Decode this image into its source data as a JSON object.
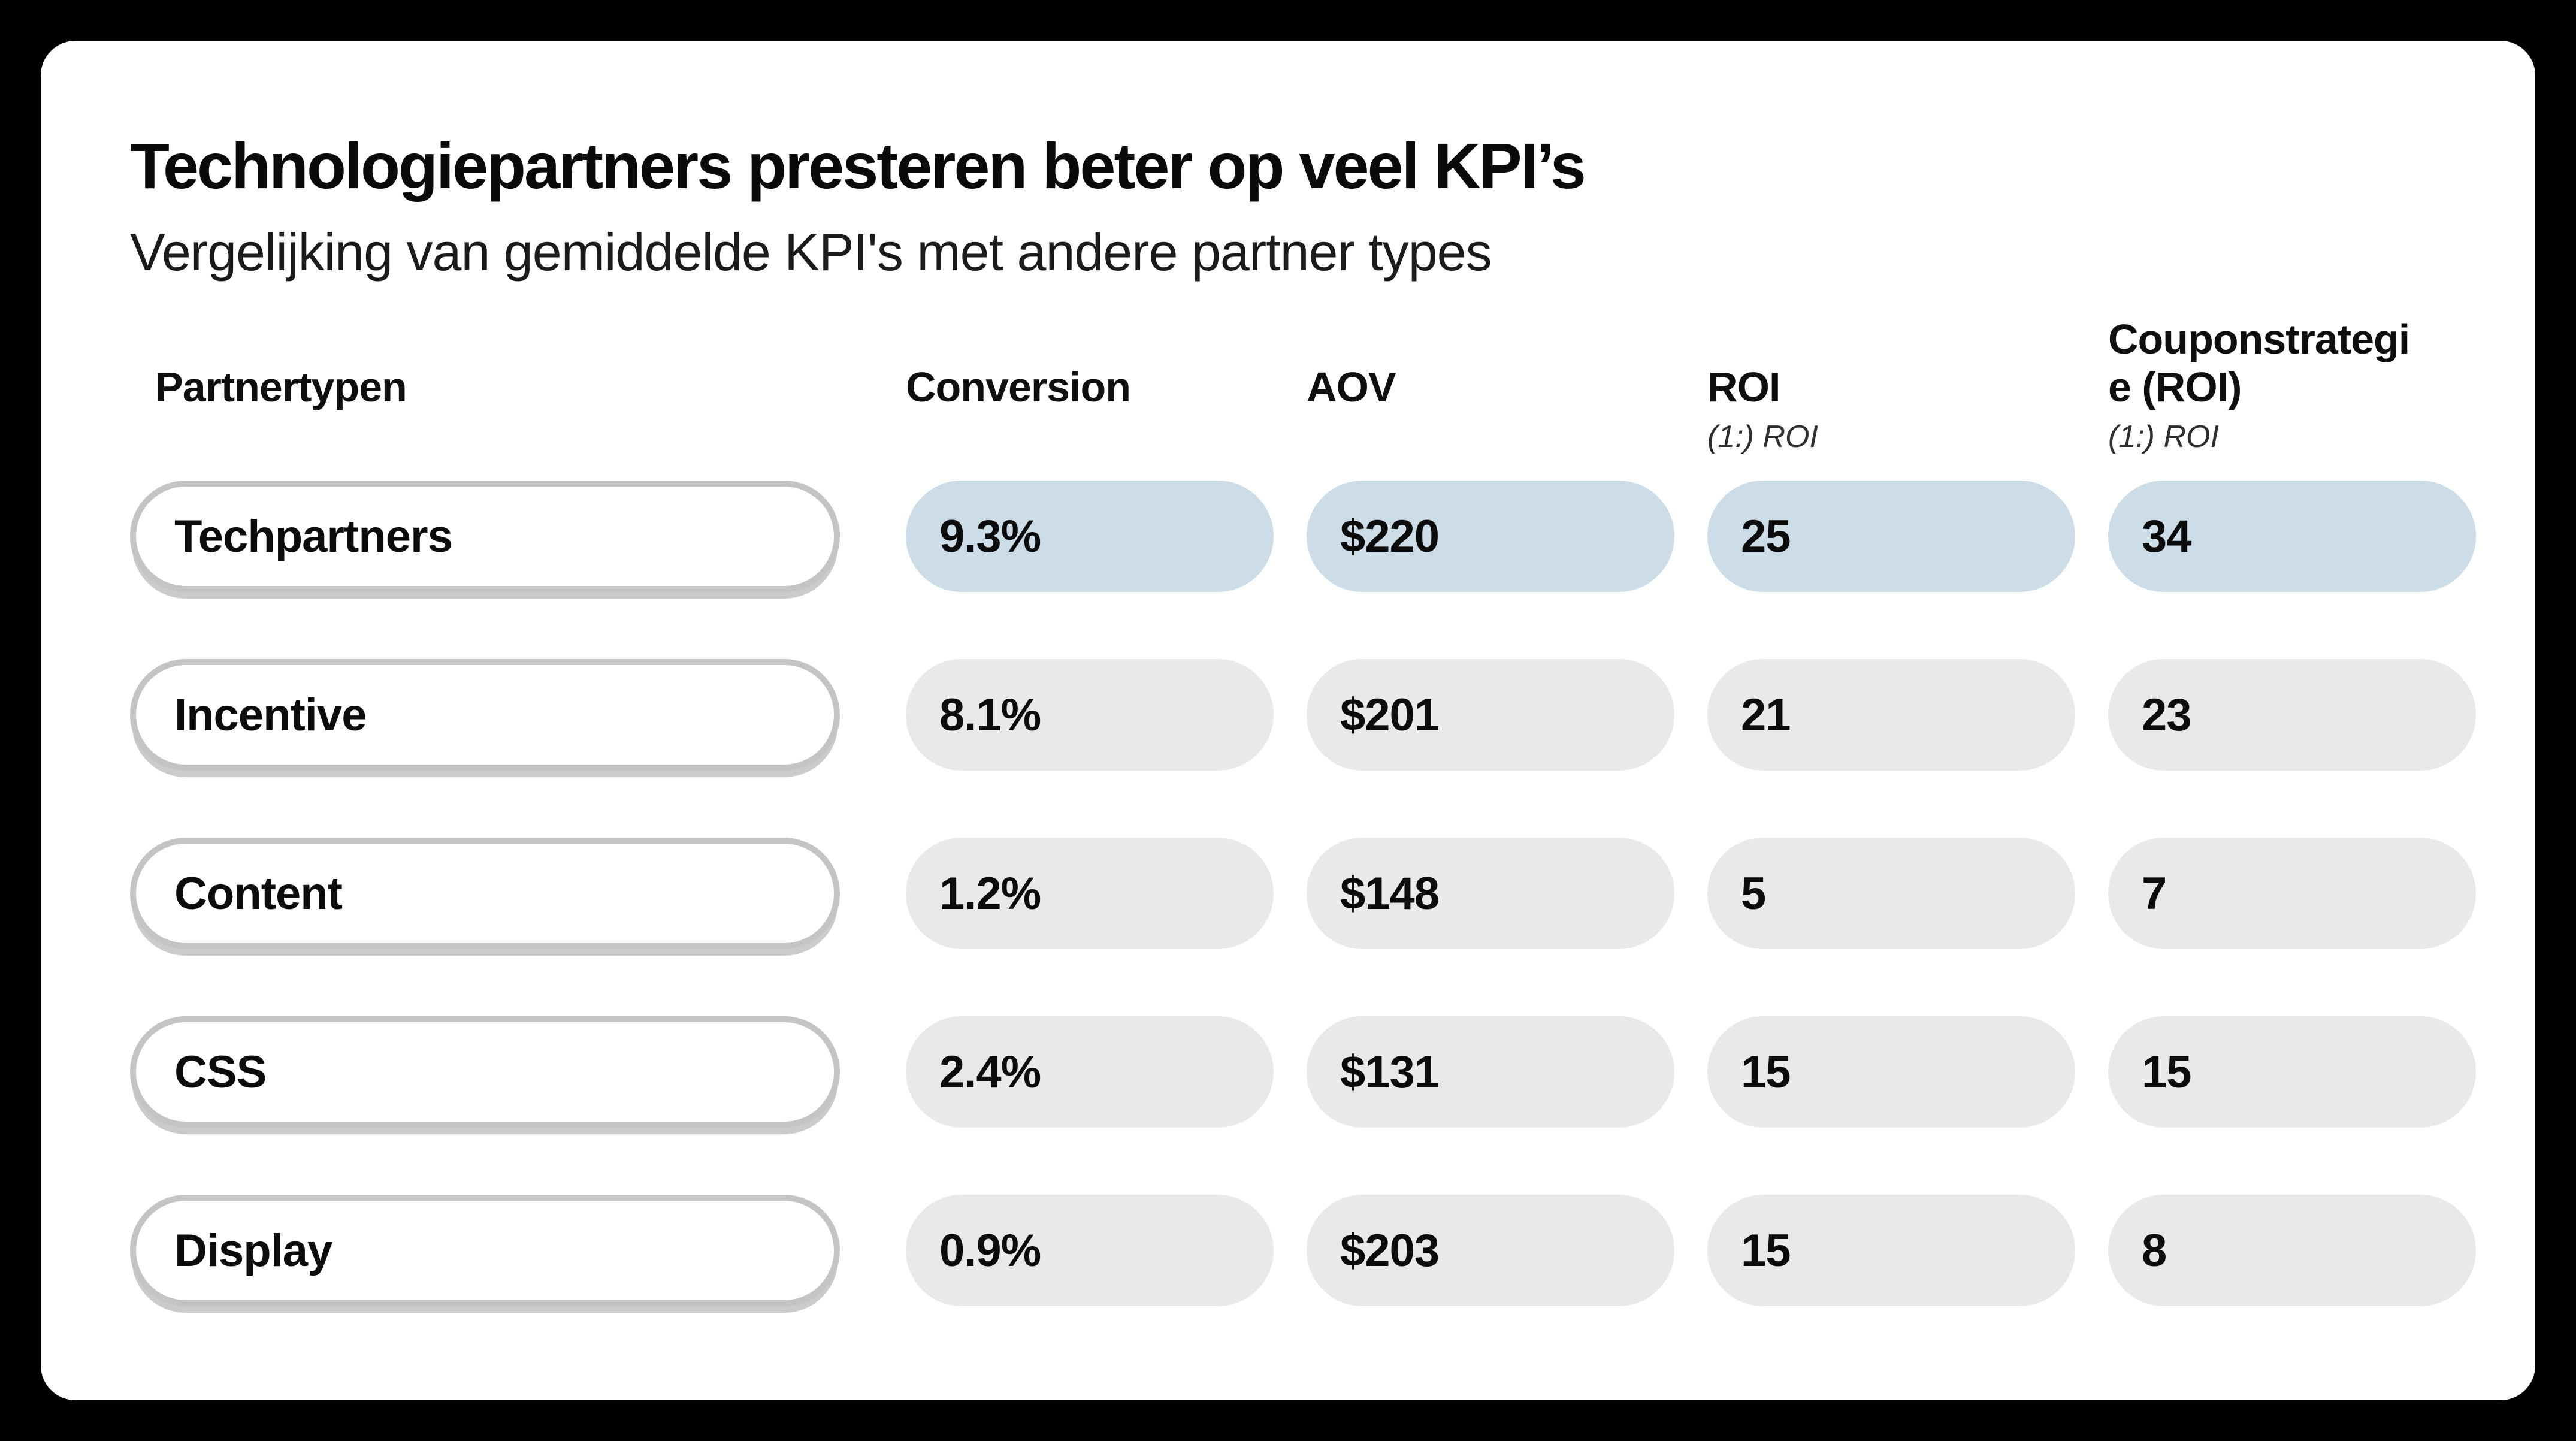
{
  "chart_data": {
    "type": "table",
    "title": "Technologiepartners presteren beter op veel KPI’s",
    "subtitle": "Vergelijking van gemiddelde KPI's met andere partner types",
    "columns": [
      {
        "label": "Partnertypen",
        "sublabel": ""
      },
      {
        "label": "Conversion",
        "sublabel": ""
      },
      {
        "label": "AOV",
        "sublabel": ""
      },
      {
        "label": "ROI",
        "sublabel": "(1:) ROI"
      },
      {
        "label": "Couponstrategie (ROI)",
        "sublabel": "(1:) ROI"
      }
    ],
    "rows": [
      {
        "partner": "Techpartners",
        "highlight": true,
        "values": [
          "9.3%",
          "$220",
          "25",
          "34"
        ]
      },
      {
        "partner": "Incentive",
        "highlight": false,
        "values": [
          "8.1%",
          "$201",
          "21",
          "23"
        ]
      },
      {
        "partner": "Content",
        "highlight": false,
        "values": [
          "1.2%",
          "$148",
          "5",
          "7"
        ]
      },
      {
        "partner": "CSS",
        "highlight": false,
        "values": [
          "2.4%",
          "$131",
          "15",
          "15"
        ]
      },
      {
        "partner": "Display",
        "highlight": false,
        "values": [
          "0.9%",
          "$203",
          "15",
          "8"
        ]
      }
    ],
    "highlighted_row": "Techpartners"
  },
  "colors": {
    "page_background": "#000000",
    "card_background": "#ffffff",
    "highlight_pill": "#ccdde8",
    "neutral_pill": "#e9e9e9",
    "partner_pill_border": "#c4c4c4"
  }
}
